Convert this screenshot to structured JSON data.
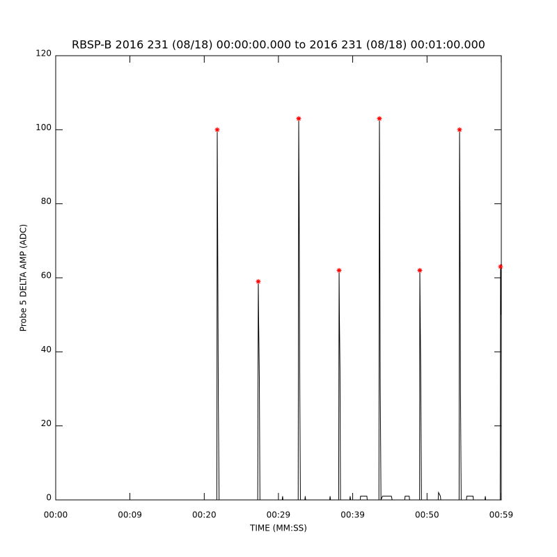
{
  "chart_data": {
    "type": "line",
    "title": "RBSP-B 2016 231 (08/18) 00:00:00.000 to 2016 231 (08/18) 00:01:00.000",
    "x_label": "TIME (MM:SS)",
    "y_label": "Probe 5 DELTA AMP (ADC)",
    "xlim": [
      0,
      60
    ],
    "ylim": [
      0,
      120
    ],
    "xticks": [
      {
        "value": 0,
        "label": "00:00"
      },
      {
        "value": 9.99,
        "label": "00:09"
      },
      {
        "value": 20,
        "label": "00:20"
      },
      {
        "value": 29.99,
        "label": "00:29"
      },
      {
        "value": 39.99,
        "label": "00:39"
      },
      {
        "value": 50,
        "label": "00:50"
      },
      {
        "value": 59.99,
        "label": "00:59"
      }
    ],
    "yticks": [
      0,
      20,
      40,
      60,
      80,
      100,
      120
    ],
    "series": [
      {
        "color": "#000000",
        "marker": "none",
        "x": [
          0,
          21.7,
          21.75,
          21.8,
          21.9,
          22.0,
          27.2,
          27.28,
          27.33,
          27.42,
          27.5,
          30.5,
          30.55,
          30.6,
          32.65,
          32.72,
          32.78,
          32.87,
          32.95,
          33.55,
          33.6,
          33.65,
          36.9,
          36.95,
          37.0,
          38.1,
          38.16,
          38.2,
          38.28,
          38.35,
          39.6,
          39.65,
          39.7,
          41.0,
          41.05,
          41.9,
          41.95,
          43.52,
          43.59,
          43.63,
          43.7,
          43.8,
          44.0,
          45.2,
          45.3,
          47.0,
          47.05,
          47.6,
          47.65,
          49.0,
          49.03,
          49.08,
          49.15,
          49.25,
          51.5,
          51.55,
          51.8,
          51.85,
          54.32,
          54.38,
          54.43,
          54.5,
          54.6,
          55.3,
          55.35,
          56.2,
          56.25,
          57.8,
          57.85,
          57.9,
          59.85,
          59.9,
          59.95
        ],
        "values": [
          0,
          0,
          100,
          77,
          27,
          0,
          0,
          59,
          48,
          33,
          0,
          0,
          1,
          0,
          0,
          103,
          81,
          29,
          0,
          0,
          1,
          0,
          0,
          1,
          0,
          0,
          62,
          50,
          35,
          0,
          0,
          1,
          0,
          0,
          1,
          1,
          0,
          0,
          103,
          82,
          31,
          0,
          1,
          1,
          0,
          0,
          1,
          1,
          0,
          0,
          62,
          50,
          35,
          0,
          0,
          2,
          1,
          0,
          0,
          100,
          80,
          30,
          0,
          0,
          1,
          1,
          0,
          0,
          1,
          0,
          0,
          63,
          50
        ]
      },
      {
        "color": "#ff0000",
        "marker": "asterisk",
        "x": [
          21.75,
          27.28,
          32.72,
          38.16,
          43.59,
          49.03,
          54.38,
          59.9
        ],
        "values": [
          100,
          59,
          103,
          62,
          103,
          62,
          100,
          63
        ]
      }
    ]
  }
}
